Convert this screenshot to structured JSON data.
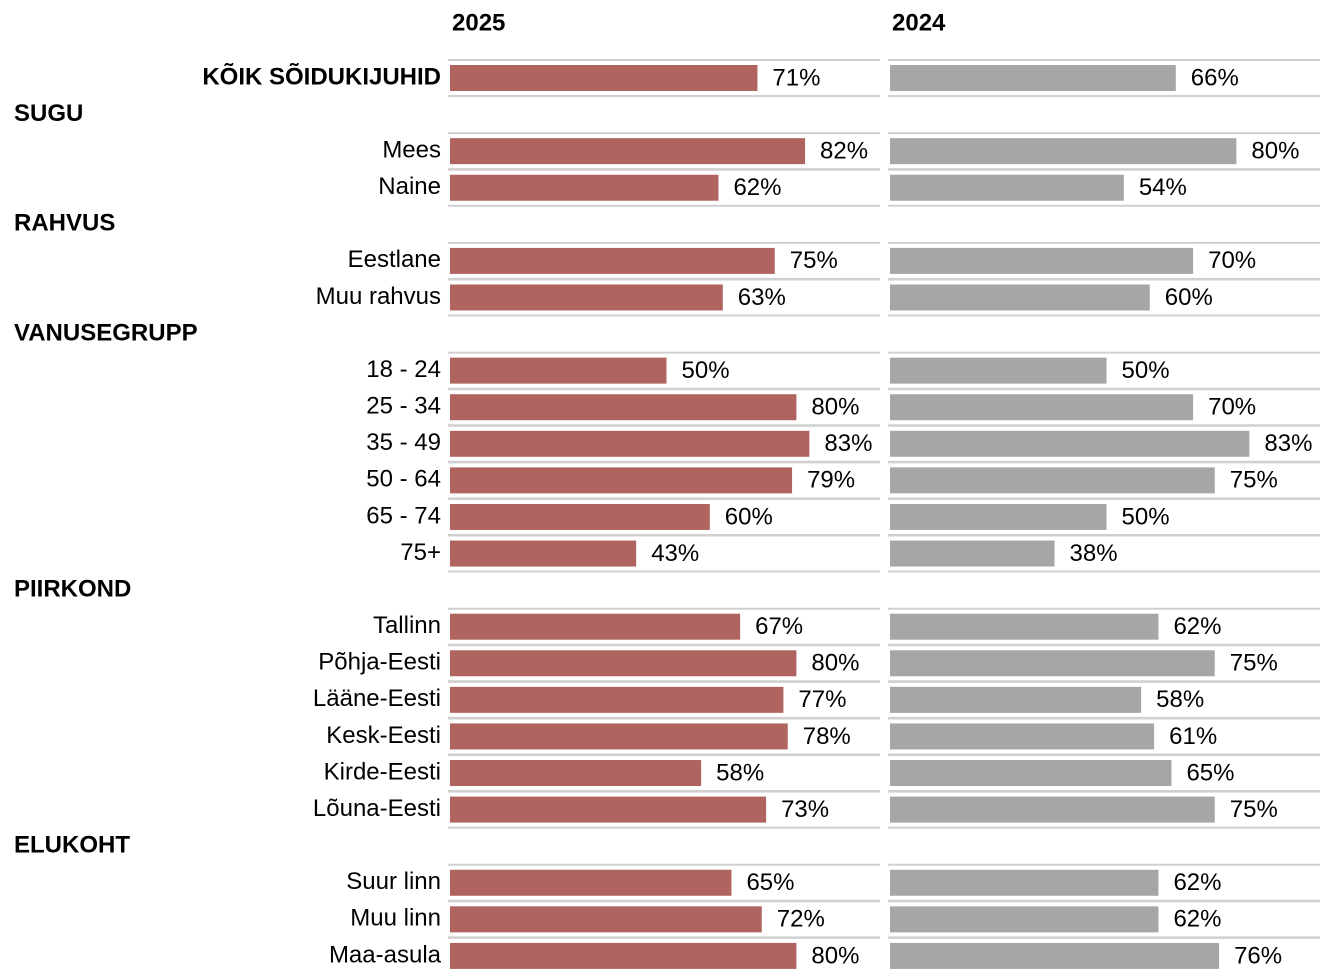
{
  "chart_data": {
    "type": "bar",
    "categories": [
      "KÕIK SÕIDUKIJUHID",
      "SUGU",
      "Mees",
      "Naine",
      "RAHVUS",
      "Eestlane",
      "Muu rahvus",
      "VANUSEGRUPP",
      "18 - 24",
      "25 - 34",
      "35 - 49",
      "50 - 64",
      "65 - 74",
      "75+",
      "PIIRKOND",
      "Tallinn",
      "Põhja-Eesti",
      "Lääne-Eesti",
      "Kesk-Eesti",
      "Kirde-Eesti",
      "Lõuna-Eesti",
      "ELUKOHT",
      "Suur linn",
      "Muu linn",
      "Maa-asula"
    ],
    "xlim": [
      0,
      100
    ],
    "series": [
      {
        "name": "2025",
        "color": "#b06460",
        "values": [
          71,
          null,
          82,
          62,
          null,
          75,
          63,
          null,
          50,
          80,
          83,
          79,
          60,
          43,
          null,
          67,
          80,
          77,
          78,
          58,
          73,
          null,
          65,
          72,
          80
        ],
        "value_labels": [
          "71%",
          null,
          "82%",
          "62%",
          null,
          "75%",
          "63%",
          null,
          "50%",
          "80%",
          "83%",
          "79%",
          "60%",
          "43%",
          null,
          "67%",
          "80%",
          "77%",
          "78%",
          "58%",
          "73%",
          null,
          "65%",
          "72%",
          "80%"
        ]
      },
      {
        "name": "2024",
        "color": "#a6a6a6",
        "values": [
          66,
          null,
          80,
          54,
          null,
          70,
          60,
          null,
          50,
          70,
          83,
          75,
          50,
          38,
          null,
          62,
          75,
          58,
          61,
          65,
          75,
          null,
          62,
          62,
          76
        ],
        "value_labels": [
          "66%",
          null,
          "80%",
          "54%",
          null,
          "70%",
          "60%",
          null,
          "50%",
          "70%",
          "83%",
          "75%",
          "50%",
          "38%",
          null,
          "62%",
          "75%",
          "58%",
          "61%",
          "65%",
          "75%",
          null,
          "62%",
          "62%",
          "76%"
        ]
      }
    ]
  }
}
